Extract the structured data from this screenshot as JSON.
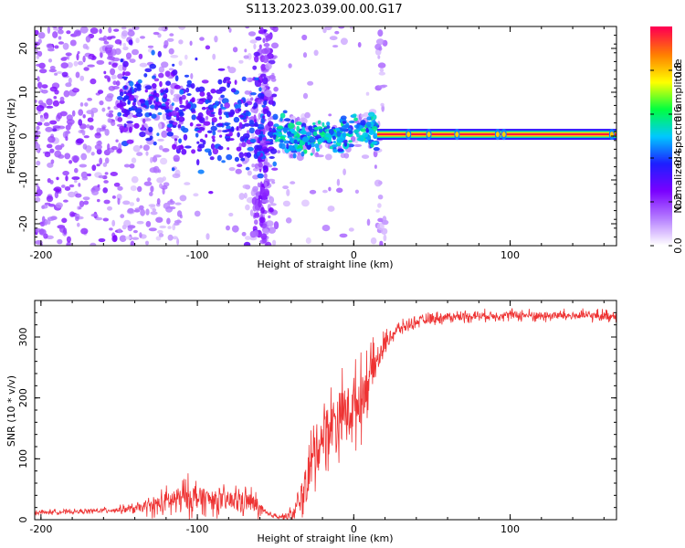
{
  "title": "S113.2023.039.00.00.G17",
  "chart_data": [
    {
      "type": "heatmap",
      "xlabel": "Height of straight line (km)",
      "ylabel": "Frequency (Hz)",
      "xlim": [
        -204,
        168
      ],
      "ylim": [
        -25,
        25
      ],
      "x_ticks": [
        -200,
        -100,
        0,
        100
      ],
      "y_ticks": [
        -20,
        -10,
        0,
        10,
        20
      ],
      "colorbar": {
        "label": "Normalized spectral amplitude",
        "range": [
          0,
          1
        ],
        "ticks": [
          "0.0",
          "0.2",
          "0.4",
          "0.6",
          "0.8"
        ],
        "colormap": [
          "#ffffff",
          "#b47cff",
          "#7a00ff",
          "#1e1eff",
          "#00c8ff",
          "#00ff40",
          "#ffff00",
          "#ff8000",
          "#ff0050"
        ]
      },
      "ridge": {
        "stable_frequency_hz": 0.4,
        "stable_from_km": 15,
        "stable_to_km": 168,
        "stable_amplitude": 1.0,
        "noisy_from_km": -204,
        "noisy_to_km": 15,
        "gap_km": [
          -110,
          -70
        ],
        "stripe_km": -58,
        "wandering_centers": [
          {
            "x": -140,
            "f": 8
          },
          {
            "x": -120,
            "f": 7
          },
          {
            "x": -100,
            "f": 5
          },
          {
            "x": -80,
            "f": 3
          },
          {
            "x": -60,
            "f": 1
          },
          {
            "x": -45,
            "f": 0.5
          },
          {
            "x": -30,
            "f": -1
          },
          {
            "x": -20,
            "f": 0.5
          },
          {
            "x": -5,
            "f": 1
          },
          {
            "x": 0,
            "f": 2
          },
          {
            "x": 10,
            "f": 0.8
          }
        ],
        "markers_km": [
          35,
          48,
          66,
          92,
          96,
          165
        ]
      }
    },
    {
      "type": "line",
      "xlabel": "Height of straight line (km)",
      "ylabel": "SNR (10 * v/v)",
      "xlim": [
        -204,
        168
      ],
      "ylim": [
        0,
        360
      ],
      "x_ticks": [
        -200,
        -100,
        0,
        100
      ],
      "y_ticks": [
        0,
        100,
        200,
        300
      ],
      "color": "#ee3333",
      "series": [
        {
          "x": [
            -204,
            -180,
            -160,
            -140,
            -125,
            -115,
            -105,
            -95,
            -85,
            -75,
            -65,
            -55,
            -45,
            -38,
            -30,
            -25,
            -20,
            -10,
            0,
            5,
            10,
            15,
            20,
            25,
            30,
            40,
            50,
            60,
            80,
            100,
            120,
            140,
            168
          ],
          "y": [
            12,
            13,
            15,
            18,
            25,
            32,
            38,
            35,
            30,
            32,
            28,
            8,
            5,
            10,
            60,
            110,
            140,
            170,
            185,
            200,
            240,
            260,
            290,
            305,
            315,
            325,
            330,
            333,
            335,
            336,
            335,
            335,
            335
          ],
          "noise_amplitude": [
            5,
            5,
            6,
            10,
            25,
            35,
            40,
            30,
            30,
            30,
            30,
            8,
            6,
            20,
            60,
            80,
            70,
            80,
            80,
            80,
            60,
            40,
            25,
            18,
            14,
            12,
            12,
            12,
            12,
            12,
            12,
            12,
            12
          ]
        }
      ]
    }
  ]
}
